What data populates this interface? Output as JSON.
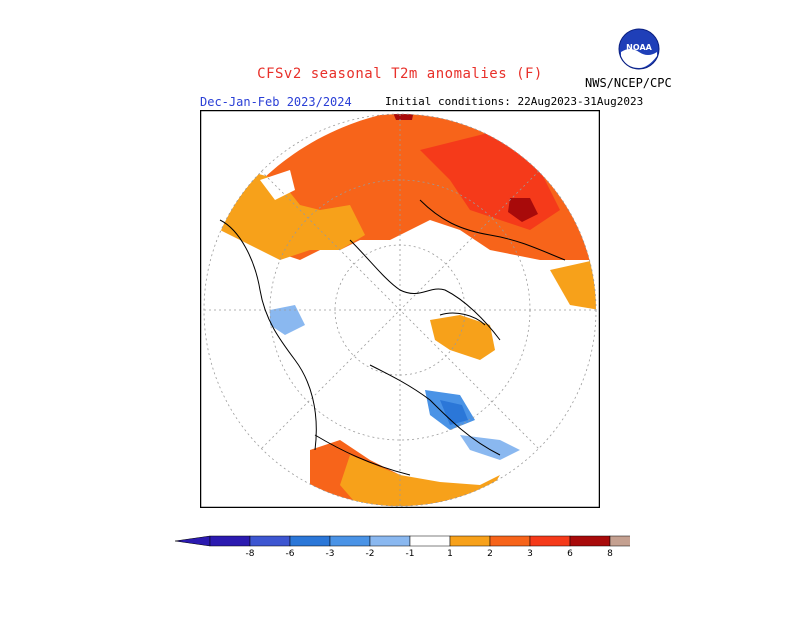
{
  "header": {
    "title": "CFSv2 seasonal T2m anomalies (F)",
    "season": "Dec-Jan-Feb 2023/2024",
    "initial_conditions": "Initial conditions: 22Aug2023-31Aug2023",
    "agency": "NWS/NCEP/CPC",
    "logo_text": "NOAA"
  },
  "colors": {
    "title": "#e8302a",
    "season": "#2a3fd6",
    "neg8": "#2b1ab0",
    "neg6": "#3d56d1",
    "neg3": "#2b77d8",
    "neg2": "#4a93e6",
    "neg1": "#8ab8f0",
    "zero": "#ffffff",
    "pos1": "#f7a11a",
    "pos2": "#f7641a",
    "pos3": "#f53a1a",
    "pos6": "#a80a0a",
    "pos8": "#c4a090",
    "pos8plus": "#7a4a3a"
  },
  "legend": {
    "labels": [
      "-8",
      "-6",
      "-3",
      "-2",
      "-1",
      "1",
      "2",
      "3",
      "6",
      "8"
    ]
  }
}
